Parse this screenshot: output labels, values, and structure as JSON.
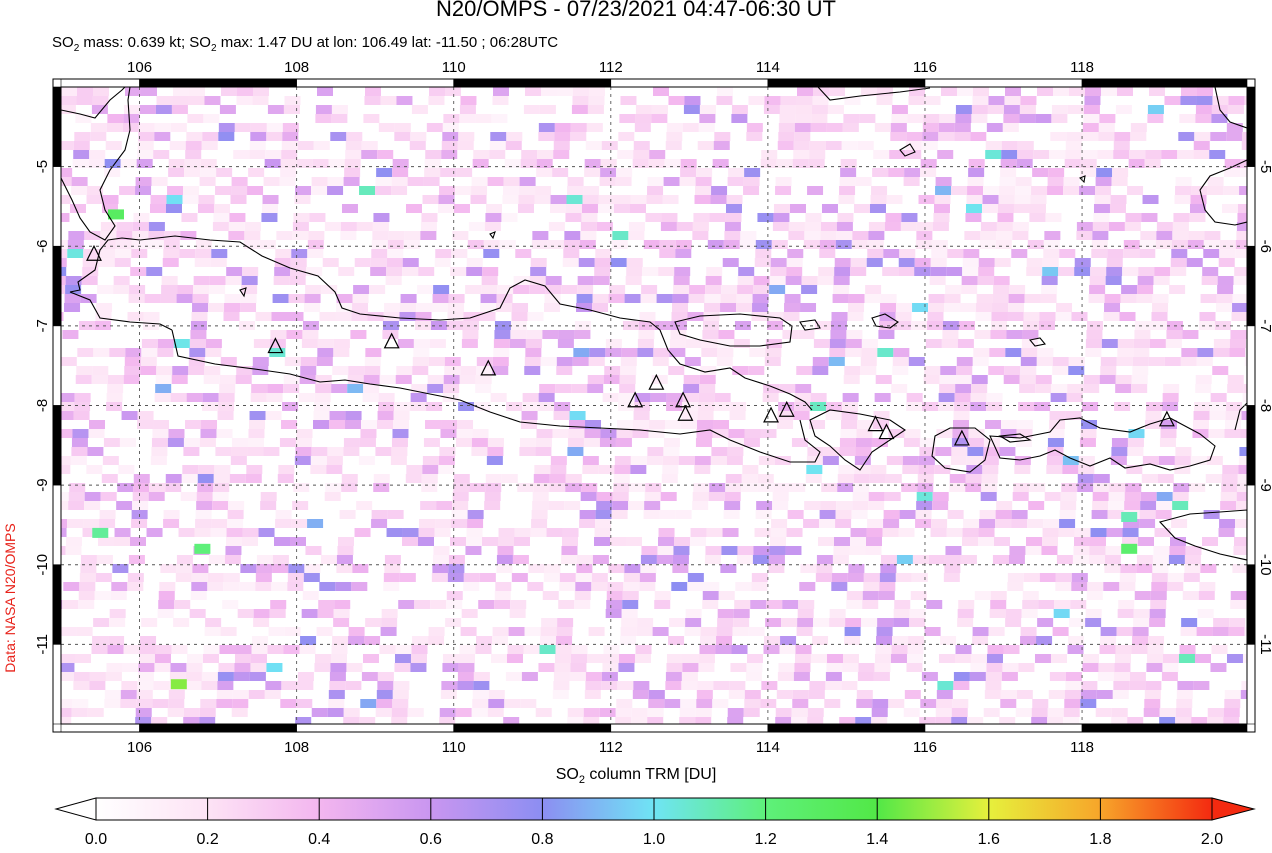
{
  "header": {
    "title": "N20/OMPS - 07/23/2021 04:47-06:30 UT",
    "so2_mass_label": "SO",
    "so2_mass_sub": "2",
    "so2_mass_text": " mass: 0.639 kt; SO",
    "so2_max_sub": "2",
    "so2_max_text": " max: 1.47 DU at lon: 106.49 lat: -11.50 ; 06:28UTC"
  },
  "credit": "Data: NASA N20/OMPS",
  "map": {
    "lon_ticks": [
      "106",
      "108",
      "110",
      "112",
      "114",
      "116",
      "118"
    ],
    "lat_ticks": [
      "-5",
      "-6",
      "-7",
      "-8",
      "-9",
      "-10",
      "-11"
    ],
    "lon_range": [
      105.0,
      120.1
    ],
    "lat_range": [
      -12.0,
      -4.0
    ],
    "volcano_marker": "triangle-outline",
    "grid": "dotted"
  },
  "colorbar": {
    "label_main": "SO",
    "label_sub": "2",
    "label_rest": " column TRM [DU]",
    "ticks": [
      "0.0",
      "0.2",
      "0.4",
      "0.6",
      "0.8",
      "1.0",
      "1.2",
      "1.4",
      "1.6",
      "1.8",
      "2.0"
    ],
    "colors": [
      "#ffffff",
      "#fde3f5",
      "#f3b6ef",
      "#c996f0",
      "#8c8ef2",
      "#6fe4f4",
      "#5ef07a",
      "#52e847",
      "#e6f03c",
      "#f7a52a",
      "#f42a10"
    ]
  },
  "chart_data": {
    "type": "heatmap",
    "title": "N20/OMPS - 07/23/2021 04:47-06:30 UT",
    "xlabel": "",
    "ylabel": "",
    "colorbar_label": "SO2 column TRM [DU]",
    "xlim": [
      105.0,
      120.1
    ],
    "ylim": [
      -12.0,
      -4.0
    ],
    "clim": [
      0.0,
      2.0
    ],
    "max_value": {
      "value": 1.47,
      "lon": 106.49,
      "lat": -11.5,
      "time": "06:28UTC"
    },
    "mass_kt": 0.639,
    "volcanoes": [
      {
        "lon": 105.42,
        "lat": -6.1
      },
      {
        "lon": 107.73,
        "lat": -7.26
      },
      {
        "lon": 109.21,
        "lat": -7.2
      },
      {
        "lon": 110.44,
        "lat": -7.54
      },
      {
        "lon": 112.31,
        "lat": -7.94
      },
      {
        "lon": 112.58,
        "lat": -7.72
      },
      {
        "lon": 112.92,
        "lat": -7.94
      },
      {
        "lon": 112.95,
        "lat": -8.11
      },
      {
        "lon": 114.04,
        "lat": -8.13
      },
      {
        "lon": 114.24,
        "lat": -8.06
      },
      {
        "lon": 115.37,
        "lat": -8.24
      },
      {
        "lon": 115.51,
        "lat": -8.34
      },
      {
        "lon": 116.47,
        "lat": -8.42
      },
      {
        "lon": 119.08,
        "lat": -8.18
      }
    ],
    "highlight_pixels": [
      {
        "lon": 105.7,
        "lat": -5.6,
        "value": 1.3
      },
      {
        "lon": 105.5,
        "lat": -9.6,
        "value": 1.15
      },
      {
        "lon": 106.5,
        "lat": -11.5,
        "value": 1.47
      },
      {
        "lon": 106.8,
        "lat": -9.8,
        "value": 1.2
      },
      {
        "lon": 118.6,
        "lat": -9.8,
        "value": 1.25
      },
      {
        "lon": 118.6,
        "lat": -9.4,
        "value": 1.1
      }
    ]
  }
}
